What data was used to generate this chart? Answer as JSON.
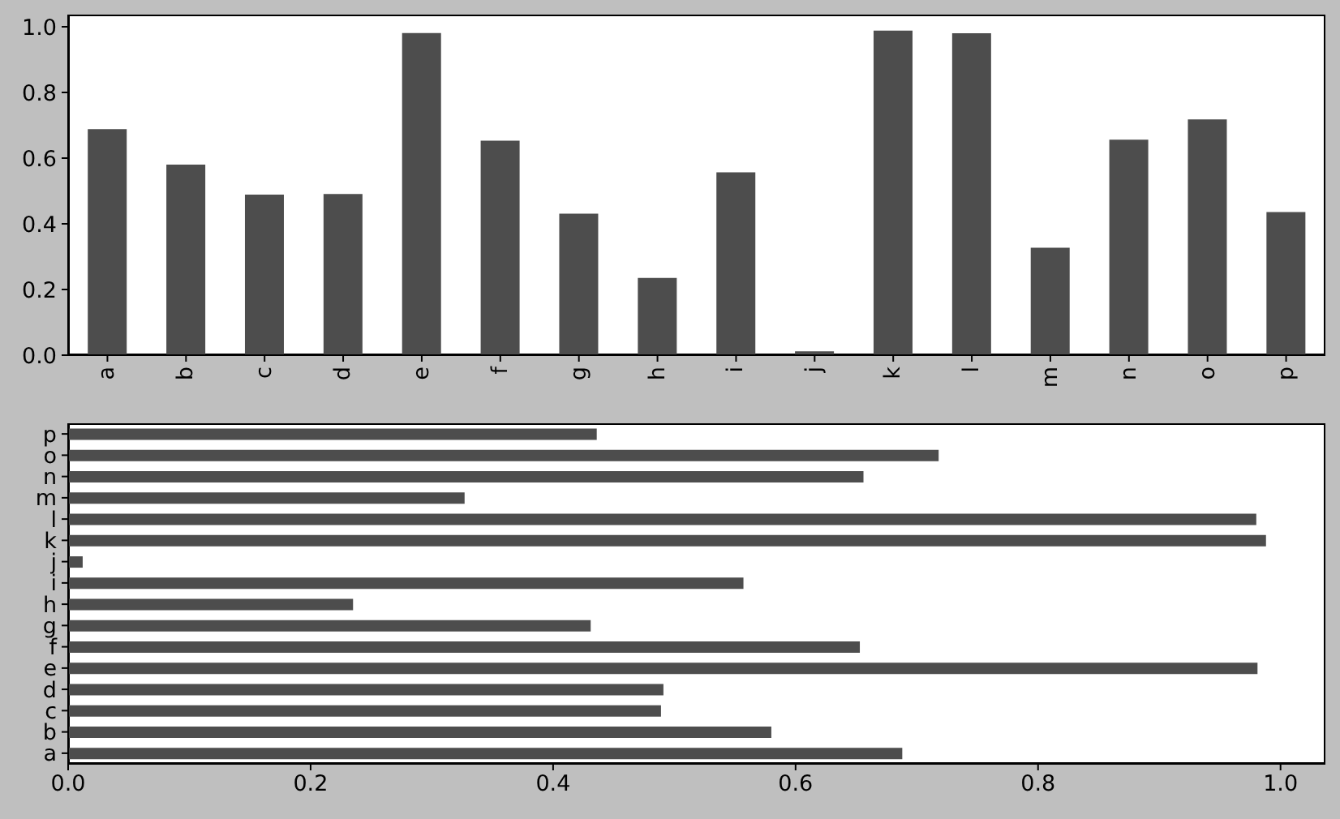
{
  "chart_data": [
    {
      "type": "bar",
      "categories": [
        "a",
        "b",
        "c",
        "d",
        "e",
        "f",
        "g",
        "h",
        "i",
        "j",
        "k",
        "l",
        "m",
        "n",
        "o",
        "p"
      ],
      "values": [
        0.688,
        0.58,
        0.489,
        0.491,
        0.981,
        0.653,
        0.431,
        0.235,
        0.557,
        0.012,
        0.988,
        0.98,
        0.327,
        0.656,
        0.718,
        0.436
      ],
      "color": "#4d4d4d",
      "ylim": [
        0,
        1.037
      ],
      "yticks": [
        {
          "value": 0,
          "label": "0.0"
        },
        0.2,
        0.4,
        0.6,
        0.8,
        {
          "value": 1,
          "label": "1.0"
        }
      ]
    },
    {
      "type": "bar",
      "orientation": "horizontal",
      "categories": [
        "p",
        "o",
        "n",
        "m",
        "l",
        "k",
        "j",
        "i",
        "h",
        "g",
        "f",
        "e",
        "d",
        "c",
        "b",
        "a"
      ],
      "values": [
        0.436,
        0.718,
        0.656,
        0.327,
        0.98,
        0.988,
        0.012,
        0.557,
        0.235,
        0.431,
        0.653,
        0.981,
        0.491,
        0.489,
        0.58,
        0.688
      ],
      "color": "#4d4d4d",
      "xlim": [
        0,
        1.037
      ],
      "xticks": [
        {
          "value": 0,
          "label": "0.0"
        },
        0.2,
        0.4,
        0.6,
        0.8,
        {
          "value": 1,
          "label": "1.0"
        }
      ]
    }
  ]
}
